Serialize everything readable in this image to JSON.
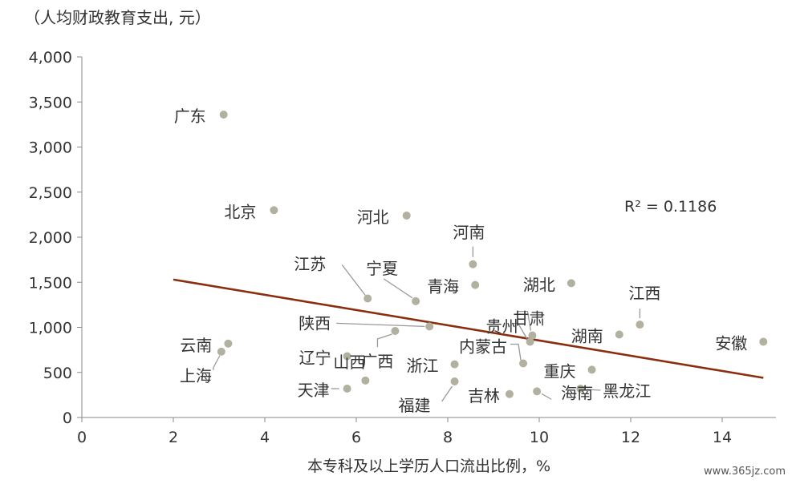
{
  "chart_data": {
    "type": "scatter",
    "ylabel": "（人均财政教育支出, 元）",
    "xlabel": "本专科及以上学历人口流出比例，%",
    "xlim": [
      0,
      15
    ],
    "ylim": [
      0,
      4000
    ],
    "x_ticks": [
      "0",
      "2",
      "4",
      "6",
      "8",
      "10",
      "12",
      "14"
    ],
    "y_ticks": [
      "0",
      "500",
      "1,000",
      "1,500",
      "2,000",
      "2,500",
      "3,000",
      "3,500",
      "4,000"
    ],
    "grid": false,
    "point_color": "#b2b09e",
    "trend_color": "#8b2e0f",
    "r2_label": "R² = 0.1186",
    "trendline": {
      "x": [
        2.0,
        14.9
      ],
      "y": [
        1530,
        440
      ]
    },
    "points": [
      {
        "label": "广东",
        "x": 3.1,
        "y": 3360
      },
      {
        "label": "北京",
        "x": 4.2,
        "y": 2300
      },
      {
        "label": "河北",
        "x": 7.1,
        "y": 2240
      },
      {
        "label": "河南",
        "x": 8.55,
        "y": 1700
      },
      {
        "label": "江苏",
        "x": 6.25,
        "y": 1320
      },
      {
        "label": "宁夏",
        "x": 7.3,
        "y": 1290
      },
      {
        "label": "青海",
        "x": 8.6,
        "y": 1470
      },
      {
        "label": "湖北",
        "x": 10.7,
        "y": 1490
      },
      {
        "label": "江西",
        "x": 12.2,
        "y": 1030
      },
      {
        "label": "陕西",
        "x": 7.6,
        "y": 1010
      },
      {
        "label": "贵州",
        "x": 9.8,
        "y": 840
      },
      {
        "label": "甘肃",
        "x": 9.85,
        "y": 910
      },
      {
        "label": "湖南",
        "x": 11.75,
        "y": 920
      },
      {
        "label": "安徽",
        "x": 14.9,
        "y": 840
      },
      {
        "label": "云南",
        "x": 3.2,
        "y": 820
      },
      {
        "label": "上海",
        "x": 3.05,
        "y": 730
      },
      {
        "label": "辽宁",
        "x": 5.8,
        "y": 680
      },
      {
        "label": "广西",
        "x": 6.85,
        "y": 960
      },
      {
        "label": "浙江",
        "x": 8.15,
        "y": 590
      },
      {
        "label": "内蒙古",
        "x": 9.65,
        "y": 600
      },
      {
        "label": "重庆",
        "x": 11.15,
        "y": 530
      },
      {
        "label": "山西",
        "x": 6.2,
        "y": 410
      },
      {
        "label": "天津",
        "x": 5.8,
        "y": 320
      },
      {
        "label": "福建",
        "x": 8.15,
        "y": 400
      },
      {
        "label": "吉林",
        "x": 9.35,
        "y": 260
      },
      {
        "label": "海南",
        "x": 9.95,
        "y": 290
      },
      {
        "label": "黑龙江",
        "x": 10.9,
        "y": 320
      }
    ]
  },
  "watermark": "www.365jz.com"
}
